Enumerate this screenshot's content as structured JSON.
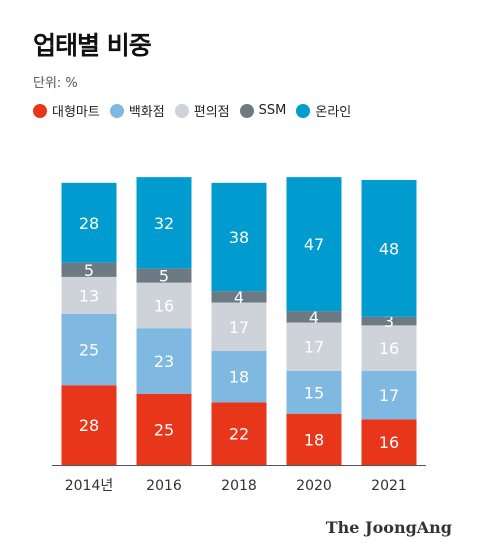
{
  "header": {
    "title": "업태별 비중",
    "unit": "단위: %"
  },
  "legend": [
    {
      "label": "대형마트",
      "color": "#e8361a"
    },
    {
      "label": "백화점",
      "color": "#7fb8e0"
    },
    {
      "label": "편의점",
      "color": "#cdd3d8"
    },
    {
      "label": "SSM",
      "color": "#6c7a84"
    },
    {
      "label": "온라인",
      "color": "#009ccf"
    }
  ],
  "chart_data": {
    "type": "bar",
    "stacked": true,
    "title": "업태별 비중",
    "unit": "단위: %",
    "categories": [
      "2014년",
      "2016",
      "2018",
      "2020",
      "2021"
    ],
    "series": [
      {
        "name": "대형마트",
        "color": "#e8361a",
        "values": [
          28,
          25,
          22,
          18,
          16
        ]
      },
      {
        "name": "백화점",
        "color": "#7fb8e0",
        "values": [
          25,
          23,
          18,
          15,
          17
        ]
      },
      {
        "name": "편의점",
        "color": "#cdd3d8",
        "values": [
          13,
          16,
          17,
          17,
          16
        ]
      },
      {
        "name": "SSM",
        "color": "#6c7a84",
        "values": [
          5,
          5,
          4,
          4,
          3
        ]
      },
      {
        "name": "온라인",
        "color": "#009ccf",
        "values": [
          28,
          32,
          38,
          47,
          48
        ]
      }
    ],
    "ylim": [
      0,
      100
    ],
    "grid": false,
    "legend_position": "top-left"
  },
  "credit": "The JoongAng"
}
